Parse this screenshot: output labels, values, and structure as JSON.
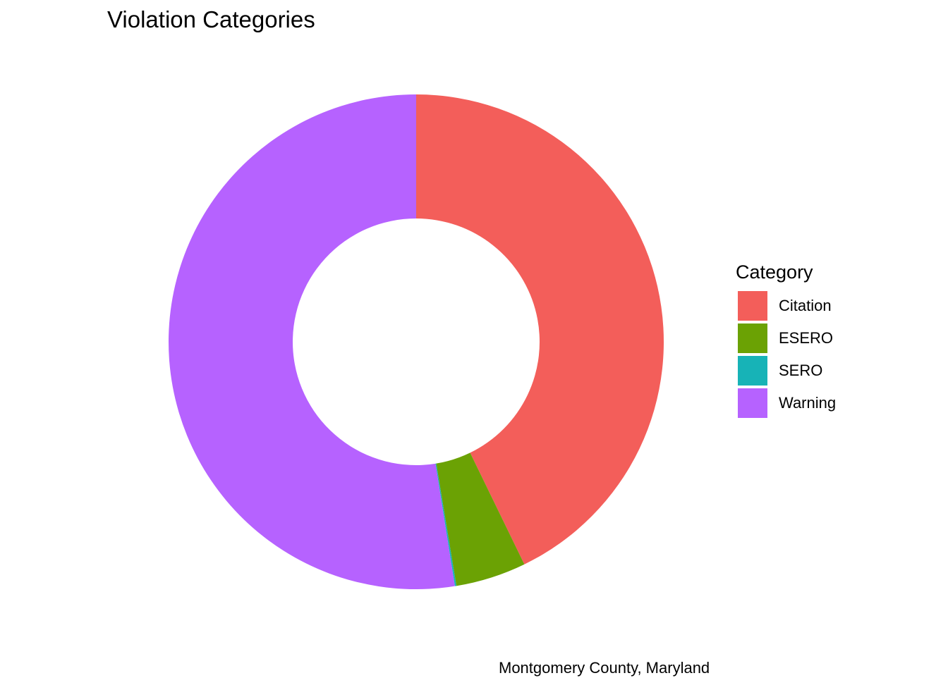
{
  "chart_data": {
    "type": "pie",
    "variant": "donut",
    "title": "Violation Categories",
    "caption": "Montgomery County, Maryland",
    "legend_title": "Category",
    "legend_placement": "right",
    "categories": [
      "Citation",
      "ESERO",
      "SERO",
      "Warning"
    ],
    "values": [
      42.8,
      4.6,
      0.1,
      52.5
    ],
    "unit": "percent",
    "colors": [
      "#F35E5A",
      "#6BA204",
      "#17B3B7",
      "#B662FF"
    ],
    "grid": false
  }
}
